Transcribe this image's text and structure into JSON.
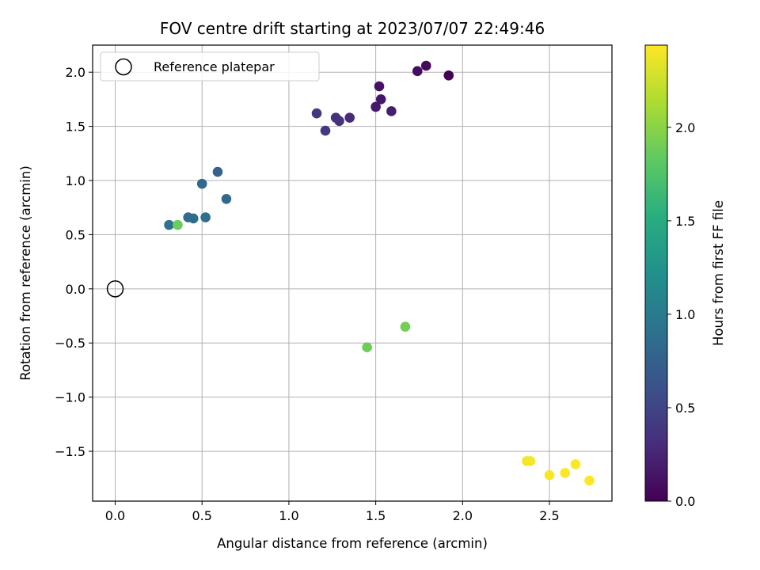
{
  "chart_data": {
    "type": "scatter",
    "title": "FOV centre drift starting at 2023/07/07 22:49:46",
    "xlabel": "Angular distance from reference (arcmin)",
    "ylabel": "Rotation from reference (arcmin)",
    "xlim": [
      -0.13,
      2.86
    ],
    "ylim": [
      -1.96,
      2.25
    ],
    "xticks": [
      0.0,
      0.5,
      1.0,
      1.5,
      2.0,
      2.5
    ],
    "xtick_labels": [
      "0.0",
      "0.5",
      "1.0",
      "1.5",
      "2.0",
      "2.5"
    ],
    "yticks": [
      -1.5,
      -1.0,
      -0.5,
      0.0,
      0.5,
      1.0,
      1.5,
      2.0
    ],
    "ytick_labels": [
      "−1.5",
      "−1.0",
      "−0.5",
      "0.0",
      "0.5",
      "1.0",
      "1.5",
      "2.0"
    ],
    "grid": true,
    "colormap": "viridis",
    "colorbar": {
      "label": "Hours from first FF file",
      "range": [
        0.0,
        2.44
      ],
      "ticks": [
        0.0,
        0.5,
        1.0,
        1.5,
        2.0
      ],
      "tick_labels": [
        "0.0",
        "0.5",
        "1.0",
        "1.5",
        "2.0"
      ]
    },
    "legend": {
      "position": "top-left",
      "entries": [
        "Reference platepar"
      ]
    },
    "reference_point": {
      "x": 0.0,
      "y": 0.0
    },
    "points": [
      {
        "x": 1.92,
        "y": 1.97,
        "hours": 0.0
      },
      {
        "x": 1.79,
        "y": 2.06,
        "hours": 0.05
      },
      {
        "x": 1.74,
        "y": 2.01,
        "hours": 0.08
      },
      {
        "x": 1.52,
        "y": 1.87,
        "hours": 0.12
      },
      {
        "x": 1.53,
        "y": 1.75,
        "hours": 0.15
      },
      {
        "x": 1.5,
        "y": 1.68,
        "hours": 0.17
      },
      {
        "x": 1.59,
        "y": 1.64,
        "hours": 0.2
      },
      {
        "x": 1.35,
        "y": 1.58,
        "hours": 0.3
      },
      {
        "x": 1.27,
        "y": 1.58,
        "hours": 0.34
      },
      {
        "x": 1.29,
        "y": 1.55,
        "hours": 0.36
      },
      {
        "x": 1.16,
        "y": 1.62,
        "hours": 0.38
      },
      {
        "x": 1.21,
        "y": 1.46,
        "hours": 0.42
      },
      {
        "x": 0.59,
        "y": 1.08,
        "hours": 0.76
      },
      {
        "x": 0.5,
        "y": 0.97,
        "hours": 0.8
      },
      {
        "x": 0.64,
        "y": 0.83,
        "hours": 0.82
      },
      {
        "x": 0.42,
        "y": 0.66,
        "hours": 0.85
      },
      {
        "x": 0.45,
        "y": 0.65,
        "hours": 0.87
      },
      {
        "x": 0.52,
        "y": 0.66,
        "hours": 0.88
      },
      {
        "x": 0.31,
        "y": 0.59,
        "hours": 0.92
      },
      {
        "x": 0.36,
        "y": 0.59,
        "hours": 1.88
      },
      {
        "x": 1.45,
        "y": -0.54,
        "hours": 1.9
      },
      {
        "x": 1.67,
        "y": -0.35,
        "hours": 1.92
      },
      {
        "x": 2.37,
        "y": -1.59,
        "hours": 2.4
      },
      {
        "x": 2.39,
        "y": -1.59,
        "hours": 2.41
      },
      {
        "x": 2.5,
        "y": -1.72,
        "hours": 2.42
      },
      {
        "x": 2.59,
        "y": -1.7,
        "hours": 2.43
      },
      {
        "x": 2.65,
        "y": -1.62,
        "hours": 2.43
      },
      {
        "x": 2.73,
        "y": -1.77,
        "hours": 2.44
      }
    ]
  }
}
